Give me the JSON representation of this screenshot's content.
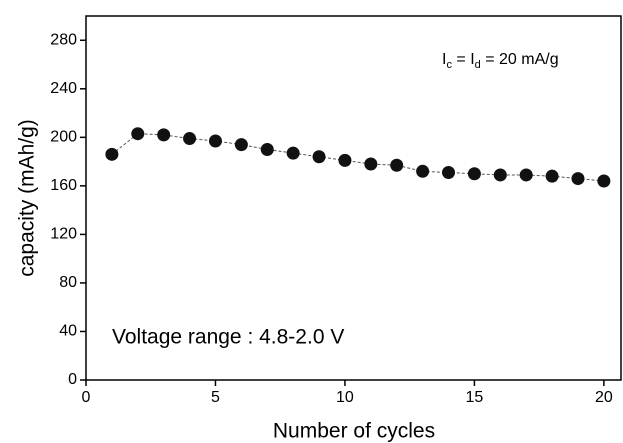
{
  "chart_data": {
    "type": "scatter",
    "x": [
      1,
      2,
      3,
      4,
      5,
      6,
      7,
      8,
      9,
      10,
      11,
      12,
      13,
      14,
      15,
      16,
      17,
      18,
      19,
      20
    ],
    "series": [
      {
        "color": "#111111",
        "values": [
          186,
          203,
          202,
          199,
          197,
          194,
          190,
          187,
          184,
          181,
          178,
          177,
          172,
          171,
          170,
          169,
          169,
          168,
          166,
          164
        ]
      }
    ],
    "xlim": [
      0,
      20.7
    ],
    "ylim": [
      0,
      300
    ],
    "xticks": [
      0,
      5,
      10,
      15,
      20
    ],
    "yticks": [
      0,
      40,
      80,
      120,
      160,
      200,
      240,
      280
    ],
    "xlabel": "Number of cycles",
    "ylabel": "capacity (mAh/g)",
    "annotations": [
      [
        "I",
        "c",
        " = I",
        "d",
        " = 20 mA/g"
      ],
      "Voltage range : 4.8-2.0 V"
    ]
  }
}
